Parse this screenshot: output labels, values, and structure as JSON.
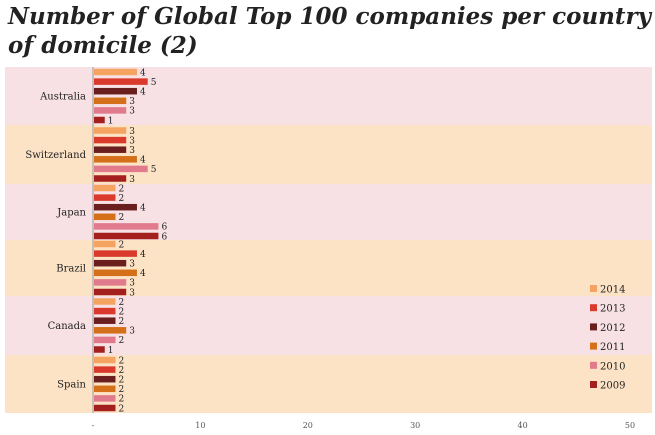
{
  "chart_data": {
    "type": "bar",
    "orientation": "horizontal",
    "title": "Number of Global Top 100 companies per country of domicile (2)",
    "categories": [
      "Australia",
      "Switzerland",
      "Japan",
      "Brazil",
      "Canada",
      "Spain"
    ],
    "series": [
      {
        "name": "2014",
        "color": "#F4A460",
        "values": [
          4,
          3,
          2,
          2,
          2,
          2
        ]
      },
      {
        "name": "2013",
        "color": "#D93A2B",
        "values": [
          5,
          3,
          2,
          4,
          2,
          2
        ]
      },
      {
        "name": "2012",
        "color": "#6B1E1E",
        "values": [
          4,
          3,
          4,
          3,
          2,
          2
        ]
      },
      {
        "name": "2011",
        "color": "#D4701A",
        "values": [
          3,
          4,
          2,
          4,
          3,
          2
        ]
      },
      {
        "name": "2010",
        "color": "#E07A8C",
        "values": [
          3,
          5,
          6,
          3,
          2,
          2
        ]
      },
      {
        "name": "2009",
        "color": "#A3201E",
        "values": [
          1,
          3,
          6,
          3,
          1,
          2
        ]
      }
    ],
    "xlim": [
      0,
      50
    ],
    "xticks": [
      "-",
      "10",
      "20",
      "30",
      "40",
      "50"
    ],
    "band_colors": [
      "#F8E1E4",
      "#FDE3C6"
    ],
    "legend_position": "bottom-right",
    "grid": false
  }
}
